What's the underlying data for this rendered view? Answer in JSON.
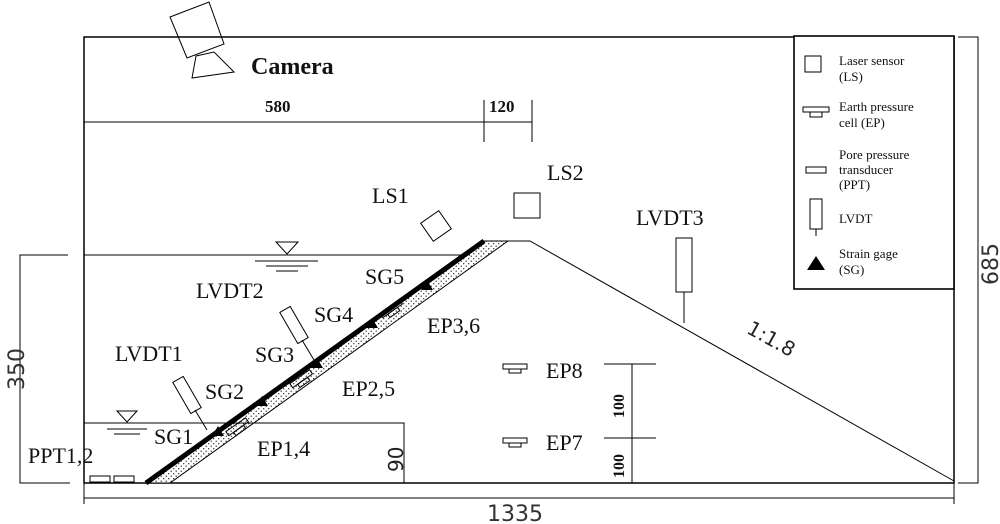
{
  "labels": {
    "camera": "Camera",
    "ls1": "LS1",
    "ls2": "LS2",
    "lvdt1": "LVDT1",
    "lvdt2": "LVDT2",
    "lvdt3": "LVDT3",
    "sg1": "SG1",
    "sg2": "SG2",
    "sg3": "SG3",
    "sg4": "SG4",
    "sg5": "SG5",
    "ep14": "EP1,4",
    "ep25": "EP2,5",
    "ep36": "EP3,6",
    "ep7": "EP7",
    "ep8": "EP8",
    "ppt12": "PPT1,2",
    "slope": "1:1.8"
  },
  "dimensions": {
    "d580": "580",
    "d120": "120",
    "d350": "350",
    "d685": "685",
    "d1335": "1335",
    "d90": "90",
    "d100a": "100",
    "d100b": "100"
  },
  "legend": {
    "ls": "Laser sensor (LS)",
    "ls_line1": "Laser sensor",
    "ls_line2": "(LS)",
    "ep_line1": "Earth pressure",
    "ep_line2": "cell (EP)",
    "ppt_line1": "Pore pressure",
    "ppt_line2": "transducer",
    "ppt_line3": "(PPT)",
    "lvdt_line1": "LVDT",
    "sg_line1": "Strain gage",
    "sg_line2": "(SG)"
  }
}
